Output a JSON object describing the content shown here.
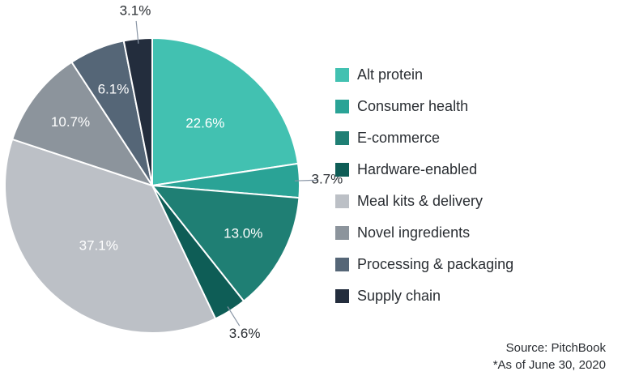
{
  "chart_data": {
    "type": "pie",
    "categories": [
      "Alt protein",
      "Consumer health",
      "E-commerce",
      "Hardware-enabled",
      "Meal kits & delivery",
      "Novel ingredients",
      "Processing & packaging",
      "Supply chain"
    ],
    "values": [
      22.6,
      3.7,
      13.0,
      3.6,
      37.1,
      10.7,
      6.1,
      3.1
    ],
    "value_labels": [
      "22.6%",
      "3.7%",
      "13.0%",
      "3.6%",
      "37.1%",
      "10.7%",
      "6.1%",
      "3.1%"
    ],
    "colors": [
      "#42c1b1",
      "#2aa396",
      "#1f7f74",
      "#0e5d56",
      "#bcc0c6",
      "#8c949c",
      "#556677",
      "#232d3d"
    ],
    "label_colors": [
      "#ffffff",
      "#ffffff",
      "#ffffff",
      "#2a2e33",
      "#ffffff",
      "#ffffff",
      "#ffffff",
      "#2a2e33"
    ],
    "start_angle": "12 o'clock",
    "direction": "clockwise",
    "legend_position": "right"
  },
  "source": {
    "line1": "Source: PitchBook",
    "line2": "*As of June 30, 2020"
  }
}
